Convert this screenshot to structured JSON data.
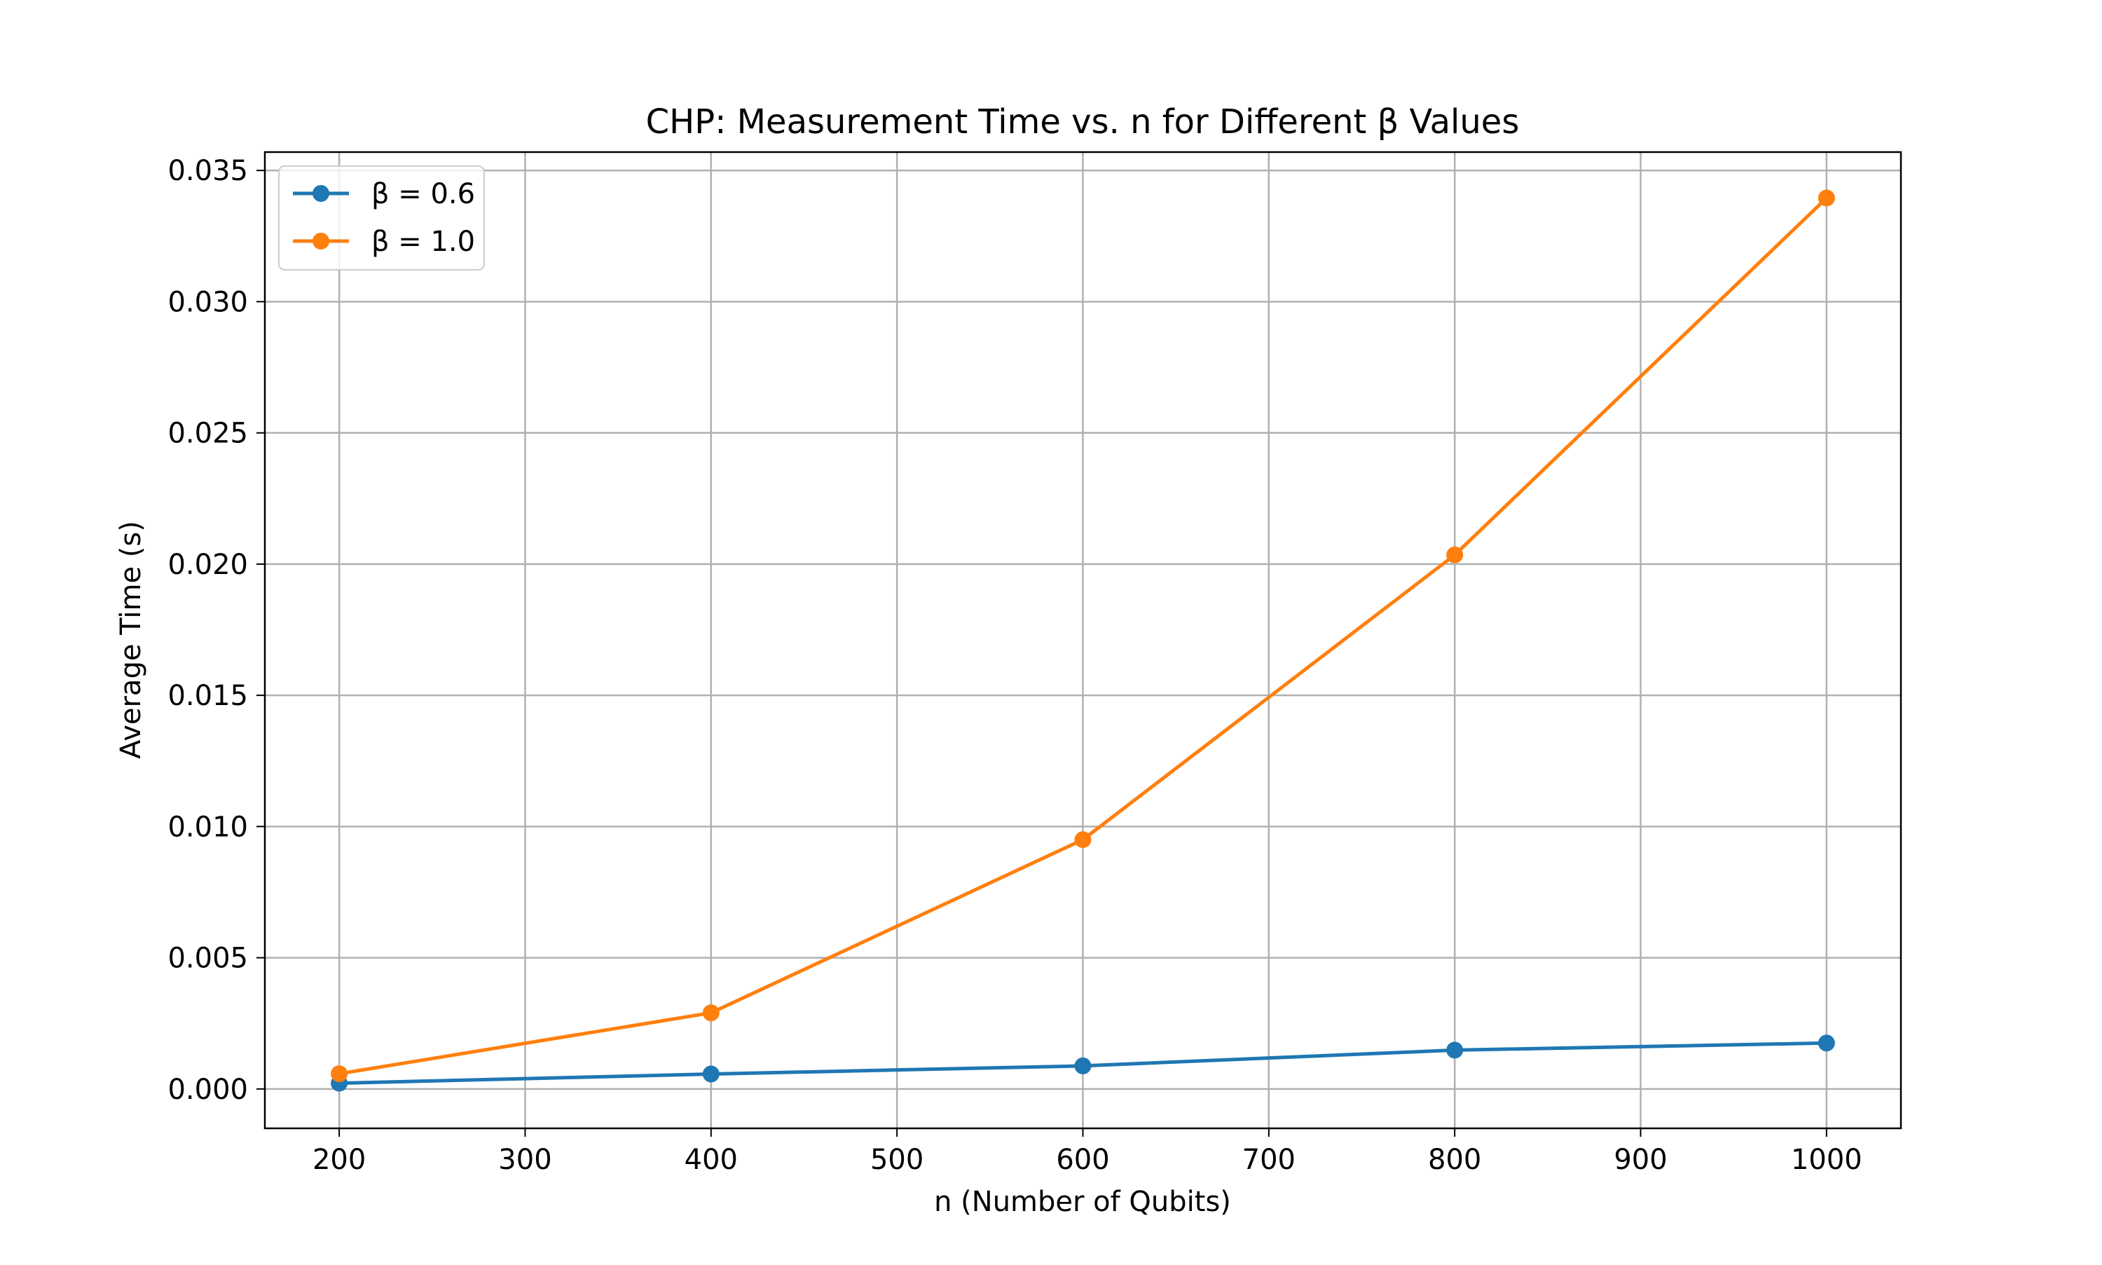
{
  "chart_data": {
    "type": "line",
    "title": "CHP: Measurement Time vs. n for Different β Values",
    "xlabel": "n (Number of Qubits)",
    "ylabel": "Average Time (s)",
    "xlim": [
      160,
      1040
    ],
    "ylim": [
      -0.0015,
      0.0357
    ],
    "x_ticks": [
      200,
      300,
      400,
      500,
      600,
      700,
      800,
      900,
      1000
    ],
    "x_tick_labels": [
      "200",
      "300",
      "400",
      "500",
      "600",
      "700",
      "800",
      "900",
      "1000"
    ],
    "y_ticks": [
      0.0,
      0.005,
      0.01,
      0.015,
      0.02,
      0.025,
      0.03,
      0.035
    ],
    "y_tick_labels": [
      "0.000",
      "0.005",
      "0.010",
      "0.015",
      "0.020",
      "0.025",
      "0.030",
      "0.035"
    ],
    "x": [
      200,
      400,
      600,
      800,
      1000
    ],
    "series": [
      {
        "name": "β = 0.6",
        "color": "#1f77b4",
        "values": [
          0.00022,
          0.00057,
          0.00088,
          0.00148,
          0.00175
        ]
      },
      {
        "name": "β = 1.0",
        "color": "#ff7f0e",
        "values": [
          0.00058,
          0.0029,
          0.0095,
          0.02035,
          0.03395
        ]
      }
    ],
    "grid": true,
    "legend": "top-left",
    "marker": "circle"
  }
}
